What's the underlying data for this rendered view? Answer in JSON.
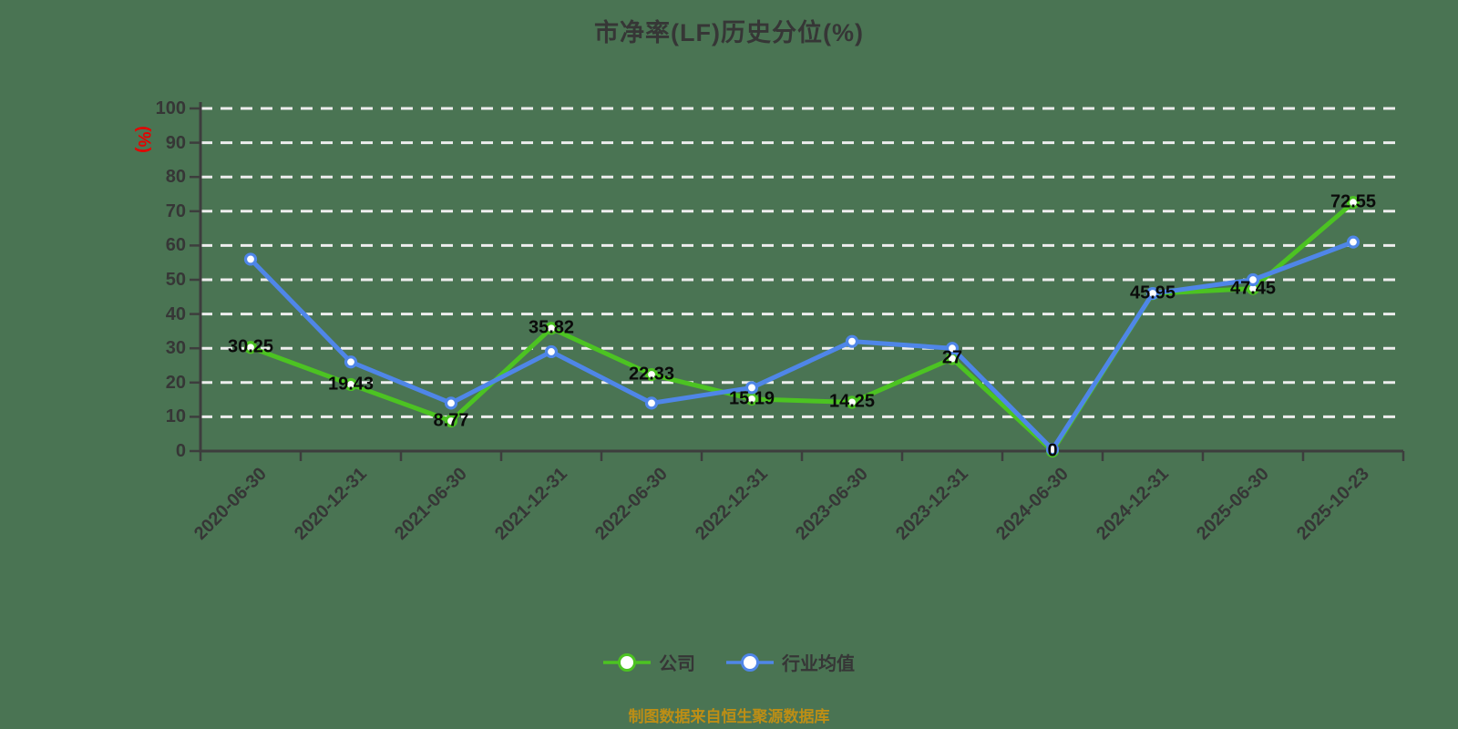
{
  "title": "市净率(LF)历史分位(%)",
  "source_note": "制图数据来自恒生聚源数据库",
  "y_axis": {
    "unit_label": "(%)",
    "min": 0,
    "max": 100,
    "step": 10
  },
  "legend": {
    "items": [
      {
        "label": "公司",
        "color": "#4cc322"
      },
      {
        "label": "行业均值",
        "color": "#4f86e8"
      }
    ]
  },
  "colors": {
    "background": "#4a7453",
    "title_text": "#363636",
    "axis_line": "#3d3d3d",
    "tick_label": "#363636",
    "unit_label": "#e60000",
    "gridline": "#ededed",
    "data_label": "#0a0a0a",
    "marker_fill": "#ffffff",
    "company_line": "#4cc322",
    "industry_line": "#4f86e8",
    "source_note_text": "#bd8e15"
  },
  "chart_data": {
    "type": "line",
    "title": "市净率(LF)历史分位(%)",
    "ylabel": "(%)",
    "ylim": [
      0,
      100
    ],
    "y_ticks": [
      0,
      10,
      20,
      30,
      40,
      50,
      60,
      70,
      80,
      90,
      100
    ],
    "grid": true,
    "grid_style": "white-dashed",
    "legend_position": "bottom",
    "categories": [
      "2020-06-30",
      "2020-12-31",
      "2021-06-30",
      "2021-12-31",
      "2022-06-30",
      "2022-12-31",
      "2023-06-30",
      "2023-12-31",
      "2024-06-30",
      "2024-12-31",
      "2025-06-30",
      "2025-10-23"
    ],
    "series": [
      {
        "name": "公司",
        "color": "#4cc322",
        "point_labels": true,
        "values": [
          30.25,
          19.43,
          8.77,
          35.82,
          22.33,
          15.19,
          14.25,
          27,
          0,
          45.95,
          47.45,
          72.55
        ]
      },
      {
        "name": "行业均值",
        "color": "#4f86e8",
        "point_labels": false,
        "estimated": true,
        "values": [
          56,
          26,
          14,
          29,
          14,
          18.5,
          32,
          30,
          0.5,
          46,
          50,
          61
        ]
      }
    ]
  }
}
